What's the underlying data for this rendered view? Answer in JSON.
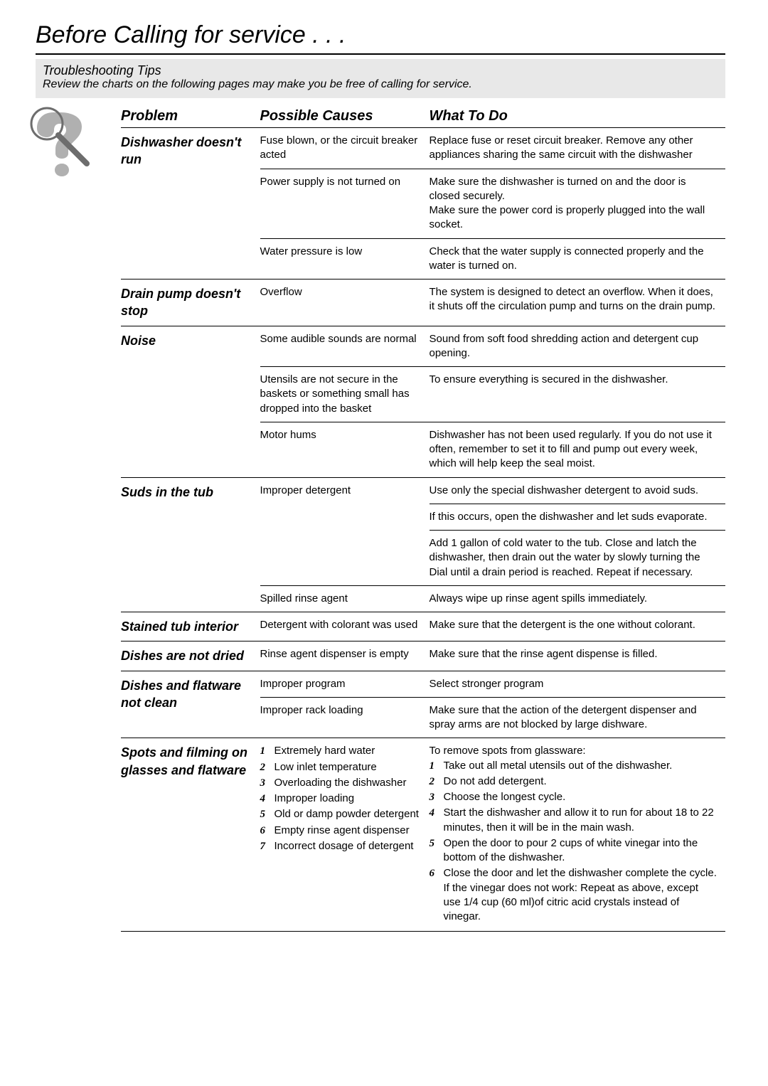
{
  "page_title": "Before Calling for service . . .",
  "subtitle_heading": "Troubleshooting Tips",
  "subtitle_text": "Review the charts on the following pages may make you be free of calling for service.",
  "icon": {
    "name": "question-icon",
    "colors": {
      "mark": "#b0b0b0",
      "stroke": "#6d6d6d"
    }
  },
  "columns": {
    "problem": "Problem",
    "causes": "Possible Causes",
    "todo": "What To Do"
  },
  "rows": [
    {
      "problem": "Dishwasher doesn't run",
      "entries": [
        {
          "cause": "Fuse blown, or the circuit breaker acted",
          "todo": "Replace fuse or reset circuit breaker. Remove any other appliances sharing the same circuit with the dishwasher"
        },
        {
          "cause": "Power supply is not turned on",
          "todo": "Make sure the dishwasher is turned on and the door is closed securely.\nMake sure the power cord is properly plugged into the wall socket."
        },
        {
          "cause": "Water pressure is low",
          "todo": "Check that the water supply is connected properly and the water is turned on."
        }
      ]
    },
    {
      "problem": "Drain pump doesn't stop",
      "entries": [
        {
          "cause": "Overflow",
          "todo": "The system is designed to detect an overflow. When it does, it shuts off the circulation pump and turns on the drain pump."
        }
      ]
    },
    {
      "problem": "Noise",
      "entries": [
        {
          "cause": "Some audible sounds are normal",
          "todo": "Sound from soft food shredding action and detergent cup opening."
        },
        {
          "cause": "Utensils are not secure in the baskets or something small has dropped into the basket",
          "todo": "To ensure everything is secured in the dishwasher."
        },
        {
          "cause": "Motor hums",
          "todo": "Dishwasher has not been used regularly. If you do not use it often, remember to set it to fill and pump out every week, which will help keep the seal moist."
        }
      ]
    },
    {
      "problem": "Suds in the tub",
      "entries": [
        {
          "cause": "Improper detergent",
          "todo_multi": [
            "Use only the special dishwasher detergent to avoid suds.",
            "If this occurs, open the dishwasher and let suds evaporate.",
            "Add 1 gallon of cold water to the tub. Close and latch the dishwasher, then drain out the water by slowly turning the Dial until a drain period is reached. Repeat if necessary."
          ]
        },
        {
          "cause": "Spilled rinse agent",
          "todo": "Always wipe up rinse agent spills immediately."
        }
      ]
    },
    {
      "problem": "Stained tub interior",
      "entries": [
        {
          "cause": "Detergent with colorant was used",
          "todo": "Make sure that the detergent is the one without colorant."
        }
      ]
    },
    {
      "problem": "Dishes are not dried",
      "entries": [
        {
          "cause": "Rinse agent dispenser is empty",
          "todo": "Make sure that the rinse agent dispense is filled."
        }
      ]
    },
    {
      "problem": "Dishes and flatware not clean",
      "entries": [
        {
          "cause": "Improper program",
          "todo": "Select stronger program"
        },
        {
          "cause": "Improper rack loading",
          "todo": "Make sure that the action of the detergent dispenser and spray arms are not blocked by large dishware."
        }
      ]
    },
    {
      "problem": "Spots and filming on glasses and flatware",
      "entries": [
        {
          "cause_list": [
            "Extremely hard water",
            "Low inlet temperature",
            "Overloading the dishwasher",
            "Improper loading",
            "Old or damp powder detergent",
            "Empty rinse agent dispenser",
            "Incorrect dosage of detergent"
          ],
          "todo_intro": "To remove spots from glassware:",
          "todo_list": [
            "Take out all metal utensils out of the dishwasher.",
            "Do not add detergent.",
            "Choose the longest cycle.",
            "Start the dishwasher and allow it to run for about 18 to 22 minutes, then it will be in the main wash.",
            "Open the door to pour 2 cups of white vinegar into the bottom of the dishwasher.",
            "Close the door and let the dishwasher complete the cycle. If the vinegar  does not work: Repeat as above, except use 1/4 cup (60 ml)of citric acid crystals instead of vinegar."
          ]
        }
      ]
    }
  ]
}
